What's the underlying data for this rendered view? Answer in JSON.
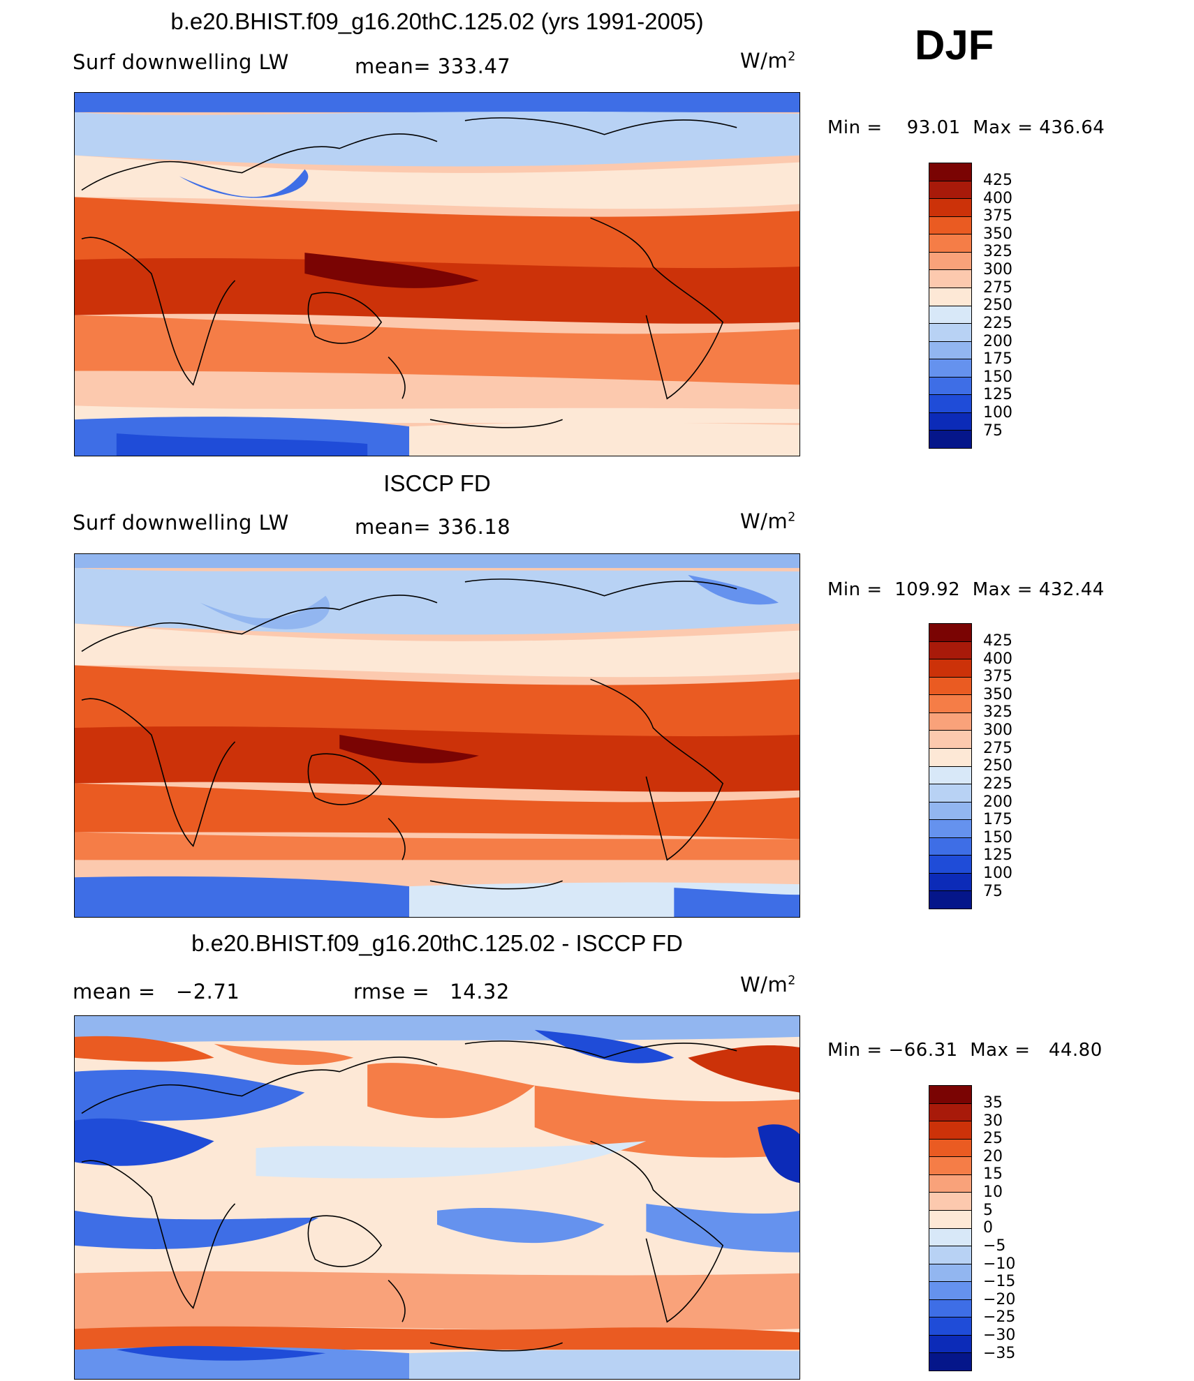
{
  "header": {
    "season": "DJF"
  },
  "panels": [
    {
      "title": "b.e20.BHIST.f09_g16.20thC.125.02 (yrs 1991-2005)",
      "left_label": "Surf downwelling LW",
      "center_label": "mean= 333.47",
      "units": "W/m",
      "units_sup": "2",
      "minmax": {
        "min_label": "Min =",
        "min": "93.01",
        "max_label": "Max =",
        "max": "436.64"
      },
      "colorbar": [
        "425",
        "400",
        "375",
        "350",
        "325",
        "300",
        "275",
        "250",
        "225",
        "200",
        "175",
        "150",
        "125",
        "100",
        "75"
      ]
    },
    {
      "title": "ISCCP FD",
      "left_label": "Surf downwelling LW",
      "center_label": "mean= 336.18",
      "units": "W/m",
      "units_sup": "2",
      "minmax": {
        "min_label": "Min =",
        "min": "109.92",
        "max_label": "Max =",
        "max": "432.44"
      },
      "colorbar": [
        "425",
        "400",
        "375",
        "350",
        "325",
        "300",
        "275",
        "250",
        "225",
        "200",
        "175",
        "150",
        "125",
        "100",
        "75"
      ]
    },
    {
      "title": "b.e20.BHIST.f09_g16.20thC.125.02 - ISCCP FD",
      "left_label": "mean =",
      "left_value": "−2.71",
      "center_label": "rmse =",
      "center_value": "14.32",
      "units": "W/m",
      "units_sup": "2",
      "minmax": {
        "min_label": "Min =",
        "min": "−66.31",
        "max_label": "Max =",
        "max": "44.80"
      },
      "colorbar": [
        "35",
        "30",
        "25",
        "20",
        "15",
        "10",
        "5",
        "0",
        "−5",
        "−10",
        "−15",
        "−20",
        "−25",
        "−30",
        "−35"
      ]
    }
  ],
  "colors": {
    "abs_scale": [
      "#7a0403",
      "#a81a0a",
      "#cc3209",
      "#ea5b22",
      "#f57d47",
      "#f9a27a",
      "#fcc9ae",
      "#fde8d6",
      "#d8e8f8",
      "#b8d2f4",
      "#92b6f0",
      "#6592ee",
      "#3e6ee6",
      "#1f4cd8",
      "#0c2bb8",
      "#05168a"
    ],
    "diff_scale": [
      "#7a0403",
      "#a81a0a",
      "#cc3209",
      "#ea5b22",
      "#f57d47",
      "#f9a27a",
      "#fcc9ae",
      "#fde8d6",
      "#d8e8f8",
      "#b8d2f4",
      "#92b6f0",
      "#6592ee",
      "#3e6ee6",
      "#1f4cd8",
      "#0c2bb8",
      "#05168a"
    ]
  }
}
